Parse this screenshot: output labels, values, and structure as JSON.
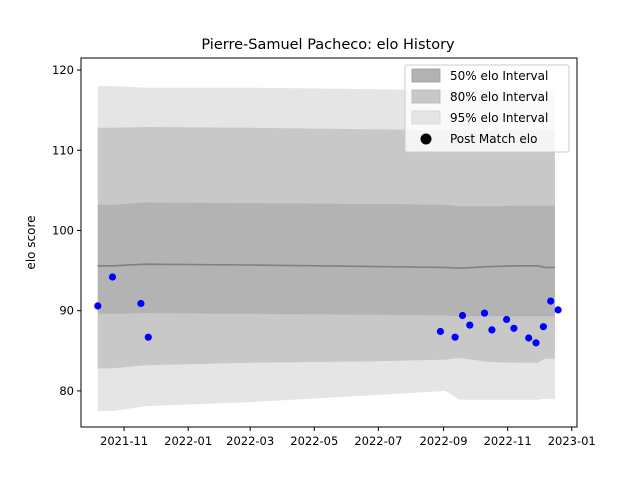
{
  "chart_data": {
    "type": "area",
    "title": "Pierre-Samuel Pacheco: elo History",
    "xlabel": "",
    "ylabel": "elo score",
    "xlim": [
      "2021-09-21",
      "2023-01-06"
    ],
    "ylim": [
      75.5,
      121.5
    ],
    "x_ticks": [
      "2021-11",
      "2022-01",
      "2022-03",
      "2022-05",
      "2022-07",
      "2022-09",
      "2022-11",
      "2023-01"
    ],
    "y_ticks": [
      80,
      90,
      100,
      110,
      120
    ],
    "grid": false,
    "legend": "top-right",
    "colors": {
      "band50": "#b3b3b3",
      "band80": "#c8c8c8",
      "band95": "#e5e5e5",
      "mean": "#808080",
      "points": "#0000ff"
    },
    "series": [
      {
        "name": "95% elo Interval",
        "x": [
          "2021-10-07",
          "2021-10-21",
          "2021-11-22",
          "2022-03-01",
          "2022-07-01",
          "2022-09-03",
          "2022-09-16",
          "2022-10-15",
          "2022-11-10",
          "2022-11-30",
          "2022-12-06",
          "2022-12-16"
        ],
        "lower": [
          77.5,
          77.5,
          78.1,
          78.6,
          79.5,
          80.0,
          78.9,
          78.9,
          78.9,
          78.9,
          79.0,
          79.0
        ],
        "upper": [
          118.0,
          118.0,
          117.8,
          117.8,
          117.6,
          117.5,
          117.5,
          117.5,
          117.5,
          117.5,
          117.5,
          117.5
        ]
      },
      {
        "name": "80% elo Interval",
        "x": [
          "2021-10-07",
          "2021-10-21",
          "2021-11-22",
          "2022-03-01",
          "2022-07-01",
          "2022-09-03",
          "2022-09-16",
          "2022-10-15",
          "2022-11-10",
          "2022-11-30",
          "2022-12-06",
          "2022-12-16"
        ],
        "lower": [
          82.8,
          82.8,
          83.2,
          83.5,
          83.7,
          83.9,
          84.1,
          83.6,
          83.5,
          83.5,
          84.0,
          84.0
        ],
        "upper": [
          112.8,
          112.8,
          112.9,
          112.8,
          112.6,
          112.5,
          112.5,
          112.5,
          112.5,
          112.5,
          112.5,
          112.5
        ]
      },
      {
        "name": "50% elo Interval",
        "x": [
          "2021-10-07",
          "2021-10-21",
          "2021-11-22",
          "2022-03-01",
          "2022-07-01",
          "2022-09-03",
          "2022-09-16",
          "2022-10-15",
          "2022-11-10",
          "2022-11-30",
          "2022-12-06",
          "2022-12-16"
        ],
        "lower": [
          89.6,
          89.6,
          89.7,
          89.6,
          89.5,
          89.4,
          89.3,
          89.3,
          89.3,
          89.3,
          89.3,
          89.3
        ],
        "upper": [
          103.2,
          103.2,
          103.5,
          103.4,
          103.3,
          103.2,
          103.0,
          103.0,
          103.1,
          103.1,
          103.1,
          103.1
        ]
      },
      {
        "name": "mean",
        "x": [
          "2021-10-07",
          "2021-10-21",
          "2021-11-22",
          "2022-03-01",
          "2022-07-01",
          "2022-09-03",
          "2022-09-16",
          "2022-10-15",
          "2022-11-10",
          "2022-11-30",
          "2022-12-06",
          "2022-12-16"
        ],
        "y": [
          95.6,
          95.6,
          95.8,
          95.7,
          95.5,
          95.4,
          95.3,
          95.5,
          95.6,
          95.6,
          95.4,
          95.4
        ]
      },
      {
        "name": "Post Match elo",
        "x": [
          "2021-10-07",
          "2021-10-21",
          "2021-11-17",
          "2021-11-24",
          "2022-08-29",
          "2022-09-12",
          "2022-09-19",
          "2022-09-26",
          "2022-10-10",
          "2022-10-17",
          "2022-10-31",
          "2022-11-07",
          "2022-11-21",
          "2022-11-28",
          "2022-12-05",
          "2022-12-12",
          "2022-12-19"
        ],
        "y": [
          90.6,
          94.2,
          90.9,
          86.7,
          87.4,
          86.7,
          89.4,
          88.2,
          89.7,
          87.6,
          88.9,
          87.8,
          86.6,
          86.0,
          88.0,
          91.2,
          90.1
        ]
      }
    ],
    "legend_entries": [
      "50% elo Interval",
      "80% elo Interval",
      "95% elo Interval",
      "Post Match elo"
    ]
  }
}
